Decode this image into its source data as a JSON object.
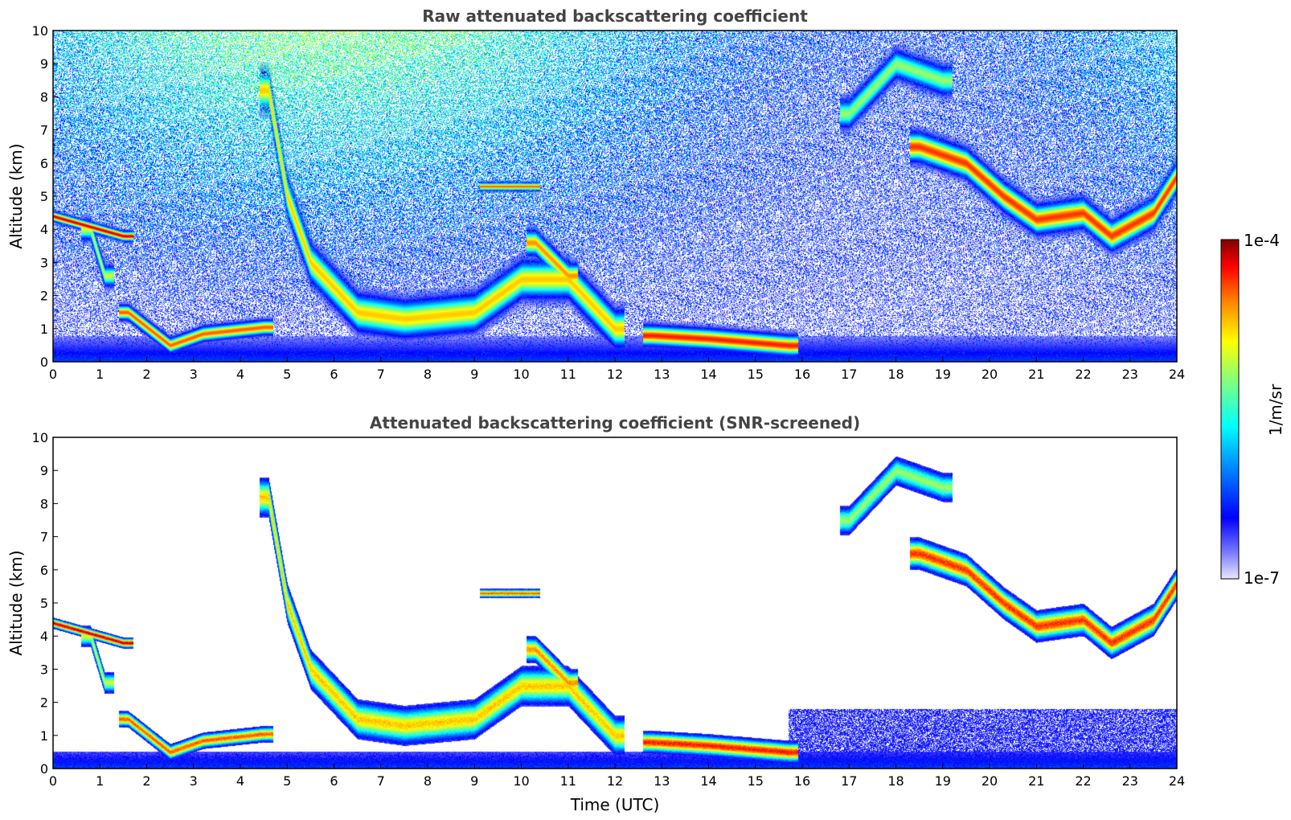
{
  "chart_data": [
    {
      "type": "heatmap",
      "title": "Raw attenuated backscattering coefficient",
      "xlabel": "",
      "ylabel": "Altitude (km)",
      "xlim": [
        0,
        24
      ],
      "ylim": [
        0,
        10
      ],
      "x_ticks": [
        "0",
        "1",
        "2",
        "3",
        "4",
        "5",
        "6",
        "7",
        "8",
        "9",
        "10",
        "11",
        "12",
        "13",
        "14",
        "15",
        "16",
        "17",
        "18",
        "19",
        "20",
        "21",
        "22",
        "23",
        "24"
      ],
      "y_ticks": [
        "0",
        "1",
        "2",
        "3",
        "4",
        "5",
        "6",
        "7",
        "8",
        "9",
        "10"
      ],
      "screened": false,
      "layers": [
        {
          "name": "early cloud",
          "points": [
            [
              0,
              4.4
            ],
            [
              1.5,
              3.8
            ]
          ],
          "half_width_km": 0.12,
          "level": 0.95
        },
        {
          "name": "fall streak",
          "points": [
            [
              0.8,
              4.0
            ],
            [
              1.1,
              2.6
            ]
          ],
          "half_width_km": 0.25,
          "level": 0.65
        },
        {
          "name": "low cloud",
          "points": [
            [
              1.6,
              1.5
            ],
            [
              2.5,
              0.5
            ],
            [
              3.2,
              0.85
            ],
            [
              4.5,
              1.05
            ]
          ],
          "half_width_km": 0.18,
          "level": 0.85
        },
        {
          "name": "virga",
          "points": [
            [
              4.6,
              8.2
            ],
            [
              5.0,
              5.0
            ],
            [
              5.5,
              3.0
            ],
            [
              6.5,
              1.5
            ],
            [
              7.5,
              1.3
            ],
            [
              9.0,
              1.5
            ],
            [
              10.0,
              2.5
            ],
            [
              11.0,
              2.5
            ],
            [
              12.0,
              1.0
            ]
          ],
          "half_width_km": 0.45,
          "level": 0.75
        },
        {
          "name": "mid cloud",
          "points": [
            [
              9.3,
              5.3
            ],
            [
              10.2,
              5.3
            ]
          ],
          "half_width_km": 0.1,
          "level": 0.85
        },
        {
          "name": "streak",
          "points": [
            [
              10.3,
              3.6
            ],
            [
              11.0,
              2.6
            ]
          ],
          "half_width_km": 0.3,
          "level": 0.8
        },
        {
          "name": "boundary layer",
          "points": [
            [
              12.8,
              0.8
            ],
            [
              14.0,
              0.7
            ],
            [
              15.7,
              0.5
            ]
          ],
          "half_width_km": 0.25,
          "level": 0.9
        },
        {
          "name": "cirrus upper",
          "points": [
            [
              17.0,
              7.5
            ],
            [
              18.0,
              9.0
            ],
            [
              19.0,
              8.5
            ]
          ],
          "half_width_km": 0.35,
          "level": 0.6
        },
        {
          "name": "cirrus main",
          "points": [
            [
              18.5,
              6.5
            ],
            [
              19.5,
              6.0
            ],
            [
              20.3,
              5.0
            ],
            [
              21.0,
              4.3
            ],
            [
              22.0,
              4.5
            ],
            [
              22.6,
              3.8
            ],
            [
              23.5,
              4.5
            ],
            [
              24.0,
              5.6
            ]
          ],
          "half_width_km": 0.35,
          "level": 0.88
        }
      ]
    },
    {
      "type": "heatmap",
      "title": "Attenuated backscattering coefficient (SNR-screened)",
      "xlabel": "Time (UTC)",
      "ylabel": "Altitude (km)",
      "xlim": [
        0,
        24
      ],
      "ylim": [
        0,
        10
      ],
      "x_ticks": [
        "0",
        "1",
        "2",
        "3",
        "4",
        "5",
        "6",
        "7",
        "8",
        "9",
        "10",
        "11",
        "12",
        "13",
        "14",
        "15",
        "16",
        "17",
        "18",
        "19",
        "20",
        "21",
        "22",
        "23",
        "24"
      ],
      "y_ticks": [
        "0",
        "1",
        "2",
        "3",
        "4",
        "5",
        "6",
        "7",
        "8",
        "9",
        "10"
      ],
      "screened": true,
      "layers": [
        {
          "name": "early cloud",
          "points": [
            [
              0,
              4.4
            ],
            [
              1.5,
              3.8
            ]
          ],
          "half_width_km": 0.12,
          "level": 0.95
        },
        {
          "name": "fall streak",
          "points": [
            [
              0.8,
              4.0
            ],
            [
              1.1,
              2.6
            ]
          ],
          "half_width_km": 0.25,
          "level": 0.65
        },
        {
          "name": "low cloud",
          "points": [
            [
              1.6,
              1.5
            ],
            [
              2.5,
              0.5
            ],
            [
              3.2,
              0.85
            ],
            [
              4.5,
              1.05
            ]
          ],
          "half_width_km": 0.18,
          "level": 0.85
        },
        {
          "name": "virga",
          "points": [
            [
              4.6,
              8.2
            ],
            [
              5.0,
              5.0
            ],
            [
              5.5,
              3.0
            ],
            [
              6.5,
              1.5
            ],
            [
              7.5,
              1.3
            ],
            [
              9.0,
              1.5
            ],
            [
              10.0,
              2.5
            ],
            [
              11.0,
              2.5
            ],
            [
              12.0,
              1.0
            ]
          ],
          "half_width_km": 0.45,
          "level": 0.75
        },
        {
          "name": "mid cloud",
          "points": [
            [
              9.3,
              5.3
            ],
            [
              10.2,
              5.3
            ]
          ],
          "half_width_km": 0.1,
          "level": 0.85
        },
        {
          "name": "streak",
          "points": [
            [
              10.3,
              3.6
            ],
            [
              11.0,
              2.6
            ]
          ],
          "half_width_km": 0.3,
          "level": 0.8
        },
        {
          "name": "boundary layer",
          "points": [
            [
              12.8,
              0.8
            ],
            [
              14.0,
              0.7
            ],
            [
              15.7,
              0.5
            ]
          ],
          "half_width_km": 0.25,
          "level": 0.9
        },
        {
          "name": "cirrus upper",
          "points": [
            [
              17.0,
              7.5
            ],
            [
              18.0,
              9.0
            ],
            [
              19.0,
              8.5
            ]
          ],
          "half_width_km": 0.35,
          "level": 0.6
        },
        {
          "name": "cirrus main",
          "points": [
            [
              18.5,
              6.5
            ],
            [
              19.5,
              6.0
            ],
            [
              20.3,
              5.0
            ],
            [
              21.0,
              4.3
            ],
            [
              22.0,
              4.5
            ],
            [
              22.6,
              3.8
            ],
            [
              23.5,
              4.5
            ],
            [
              24.0,
              5.6
            ]
          ],
          "half_width_km": 0.35,
          "level": 0.88
        }
      ]
    }
  ],
  "colorbar": {
    "max_label": "1e-4",
    "min_label": "1e-7",
    "unit_label": "1/m/sr",
    "colormap": "jet",
    "scale": "log"
  }
}
